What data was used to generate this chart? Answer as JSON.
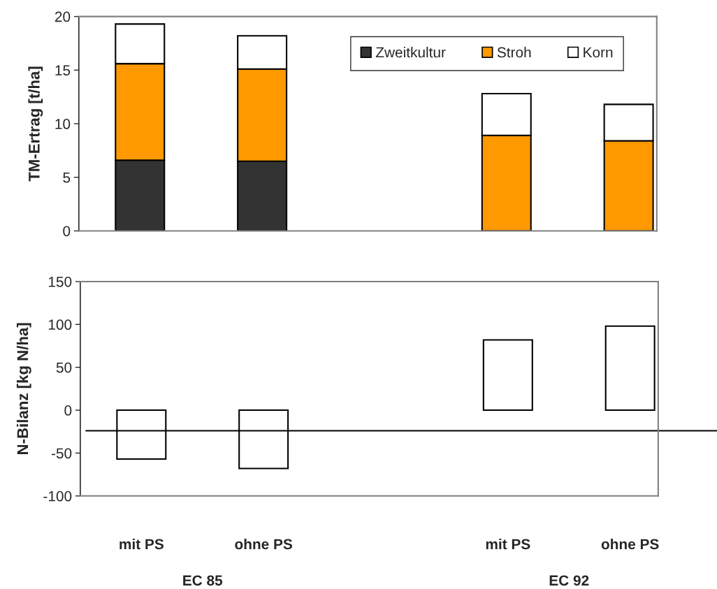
{
  "chart_data": [
    {
      "type": "bar",
      "ylabel": "TM-Ertrag [t/ha]",
      "categories": [
        null,
        null,
        null,
        null,
        null
      ],
      "stacked": true,
      "series": [
        {
          "name": "Zweitkultur",
          "color": "#333333",
          "values": [
            6.6,
            6.5,
            null,
            0,
            0
          ]
        },
        {
          "name": "Stroh",
          "color": "#ff9900",
          "values": [
            9.0,
            8.6,
            null,
            8.9,
            8.4
          ]
        },
        {
          "name": "Korn",
          "color": "#ffffff",
          "values": [
            3.7,
            3.1,
            null,
            3.9,
            3.4
          ]
        }
      ],
      "ylim": [
        0,
        20
      ],
      "yticks": [
        0,
        5,
        10,
        15,
        20
      ],
      "grid": false,
      "legend": "top right",
      "tick_labels": "y"
    },
    {
      "type": "bar",
      "ylabel": "N-Bilanz [kg N/ha]",
      "categories": [
        "mit PS",
        "ohne PS",
        null,
        "mit PS",
        "ohne PS"
      ],
      "series": [
        {
          "color": "#ffffff",
          "values": [
            -57,
            -68,
            null,
            82,
            98
          ]
        }
      ],
      "ylim": [
        -100,
        150
      ],
      "yticks": [
        -100,
        -50,
        0,
        50,
        100,
        150
      ],
      "grid": false,
      "ref_lines": [
        {
          "axis": "y",
          "value": -24,
          "color": "#000000"
        }
      ],
      "annotations": [
        "EC 85",
        "EC 92"
      ]
    }
  ]
}
